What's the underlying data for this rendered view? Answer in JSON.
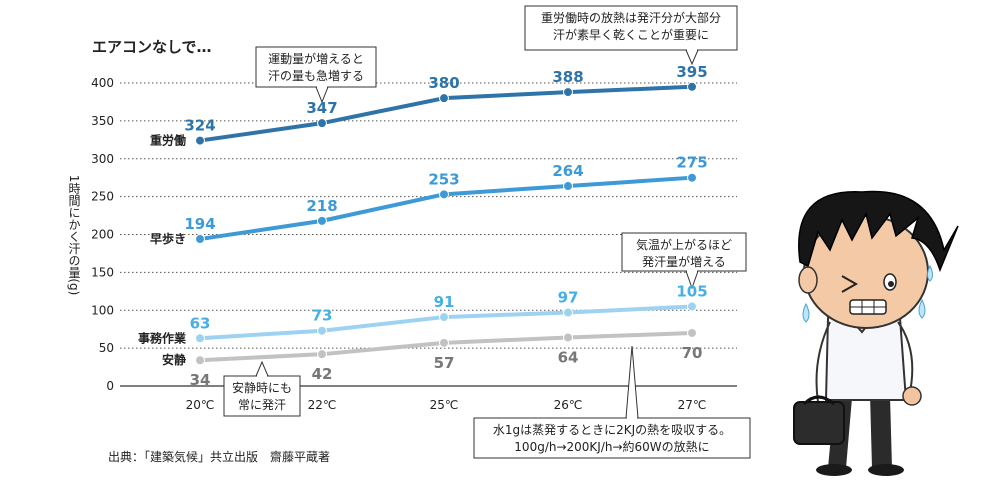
{
  "chart_data": {
    "type": "line",
    "title": "エアコンなしで…",
    "ylabel": "1時間にかく汗の量(g)",
    "xlabel": "",
    "categories": [
      "20℃",
      "22℃",
      "25℃",
      "26℃",
      "27℃"
    ],
    "ylim": [
      0,
      400
    ],
    "yticks": [
      0,
      50,
      100,
      150,
      200,
      250,
      300,
      350,
      400
    ],
    "grid": true,
    "series": [
      {
        "name": "重労働",
        "values": [
          324,
          347,
          380,
          388,
          395
        ],
        "color": "#2e74a8"
      },
      {
        "name": "早歩き",
        "values": [
          194,
          218,
          253,
          264,
          275
        ],
        "color": "#3d9ad6"
      },
      {
        "name": "事務作業",
        "values": [
          63,
          73,
          91,
          97,
          105
        ],
        "color": "#9dd3f0",
        "label_color": "#45b0e6"
      },
      {
        "name": "安静",
        "values": [
          34,
          42,
          57,
          64,
          70
        ],
        "color": "#c2c2c2",
        "label_color": "#777777"
      }
    ],
    "annotations": [
      {
        "id": "heavy",
        "lines": [
          "重労働時の放熱は発汗分が大部分",
          "汗が素早く乾くことが重要に"
        ]
      },
      {
        "id": "exercise",
        "lines": [
          "運動量が増えると",
          "汗の量も急増する"
        ]
      },
      {
        "id": "temp",
        "lines": [
          "気温が上がるほど",
          "発汗量が増える"
        ]
      },
      {
        "id": "rest",
        "lines": [
          "安静時にも",
          "常に発汗"
        ]
      },
      {
        "id": "water",
        "lines": [
          "水1gは蒸発するときに2KJの熱を吸収する。",
          "100g/h→200KJ/h→約60Wの放熱に"
        ]
      }
    ],
    "source": "出典：「建築気候」共立出版　齋藤平蔵著"
  }
}
